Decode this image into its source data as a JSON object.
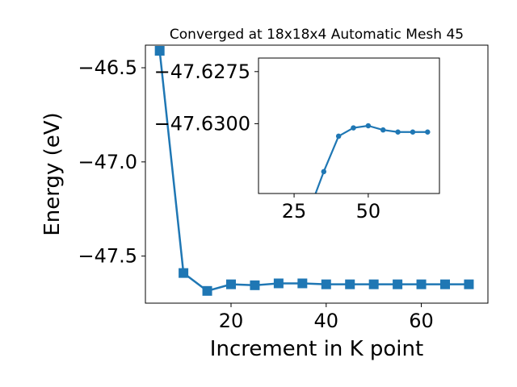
{
  "chart_data": [
    {
      "type": "line",
      "title": "Converged at 18x18x4 Automatic Mesh 45",
      "xlabel": "Increment in K point",
      "ylabel": "Energy (eV)",
      "xlim": [
        2,
        74
      ],
      "ylim": [
        -47.75,
        -46.38
      ],
      "xticks": [
        20,
        40,
        60
      ],
      "xtick_labels": [
        "20",
        "40",
        "60"
      ],
      "yticks": [
        -46.5,
        -47.0,
        -47.5
      ],
      "ytick_labels": [
        "−46.5",
        "−47.0",
        "−47.5"
      ],
      "grid": false,
      "marker": "square",
      "color": "#1f77b4",
      "series": [
        {
          "x": [
            5,
            10,
            15,
            20,
            25,
            30,
            35,
            40,
            45,
            50,
            55,
            60,
            65,
            70
          ],
          "y": [
            -46.41,
            -47.59,
            -47.685,
            -47.65,
            -47.655,
            -47.645,
            -47.645,
            -47.65,
            -47.65,
            -47.65,
            -47.65,
            -47.65,
            -47.65,
            -47.65
          ]
        }
      ]
    },
    {
      "type": "line",
      "title": "",
      "xlabel": "",
      "ylabel": "",
      "xlim": [
        13,
        74
      ],
      "ylim": [
        -47.63335,
        -47.62685
      ],
      "xticks": [
        25,
        50
      ],
      "xtick_labels": [
        "25",
        "50"
      ],
      "yticks": [
        -47.63,
        -47.6275
      ],
      "ytick_labels": [
        "−47.6300",
        "−47.6275"
      ],
      "grid": false,
      "marker": "circle",
      "color": "#1f77b4",
      "series": [
        {
          "x": [
            30,
            35,
            40,
            45,
            50,
            55,
            60,
            65,
            70
          ],
          "y": [
            -47.6342,
            -47.6323,
            -47.6306,
            -47.6302,
            -47.6301,
            -47.6303,
            -47.6304,
            -47.6304,
            -47.6304
          ]
        }
      ]
    }
  ]
}
